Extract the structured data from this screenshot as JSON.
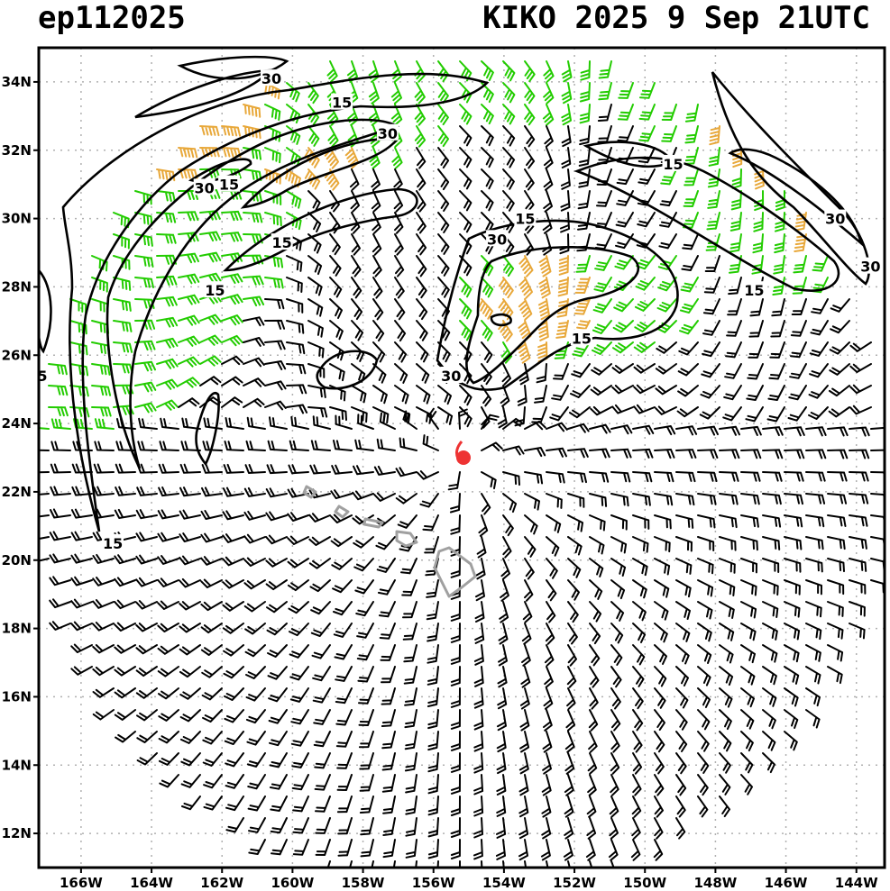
{
  "header": {
    "storm_id": "ep112025",
    "storm_label": "KIKO 2025   9 Sep 21UTC"
  },
  "map": {
    "lon_range": [
      -167.2,
      -143.2
    ],
    "lat_range": [
      11.0,
      35.0
    ],
    "lat_ticks": [
      "12N",
      "14N",
      "16N",
      "18N",
      "20N",
      "22N",
      "24N",
      "26N",
      "28N",
      "30N",
      "32N",
      "34N"
    ],
    "lon_ticks": [
      "166W",
      "164W",
      "162W",
      "160W",
      "158W",
      "156W",
      "154W",
      "152W",
      "150W",
      "148W",
      "146W",
      "144W"
    ],
    "grid": "dotted",
    "storm_center": {
      "lon": -155.2,
      "lat": 22.9
    },
    "contour_labels": [
      {
        "text": "30",
        "lon": -160.6,
        "lat": 34.1
      },
      {
        "text": "15",
        "lon": -158.6,
        "lat": 33.4
      },
      {
        "text": "30",
        "lon": -157.3,
        "lat": 32.5
      },
      {
        "text": "30",
        "lon": -162.5,
        "lat": 30.9
      },
      {
        "text": "15",
        "lon": -161.8,
        "lat": 31.0
      },
      {
        "text": "15",
        "lon": -160.3,
        "lat": 29.3
      },
      {
        "text": "15",
        "lon": -162.2,
        "lat": 27.9
      },
      {
        "text": "5",
        "lon": -167.1,
        "lat": 25.4
      },
      {
        "text": "15",
        "lon": -165.1,
        "lat": 20.5
      },
      {
        "text": "15",
        "lon": -153.4,
        "lat": 30.0
      },
      {
        "text": "30",
        "lon": -154.2,
        "lat": 29.4
      },
      {
        "text": "30",
        "lon": -155.5,
        "lat": 25.4
      },
      {
        "text": "15",
        "lon": -149.2,
        "lat": 31.6
      },
      {
        "text": "15",
        "lon": -151.8,
        "lat": 26.5
      },
      {
        "text": "30",
        "lon": -144.6,
        "lat": 30.0
      },
      {
        "text": "15",
        "lon": -146.9,
        "lat": 27.9
      },
      {
        "text": "30",
        "lon": -143.6,
        "lat": 28.6
      }
    ],
    "colors": {
      "barb_black": "#000000",
      "barb_green": "#22cc00",
      "barb_orange": "#e8a83a",
      "coast": "#a0a0a0",
      "storm": "#ee3333",
      "grid": "#b0b0b0"
    }
  }
}
